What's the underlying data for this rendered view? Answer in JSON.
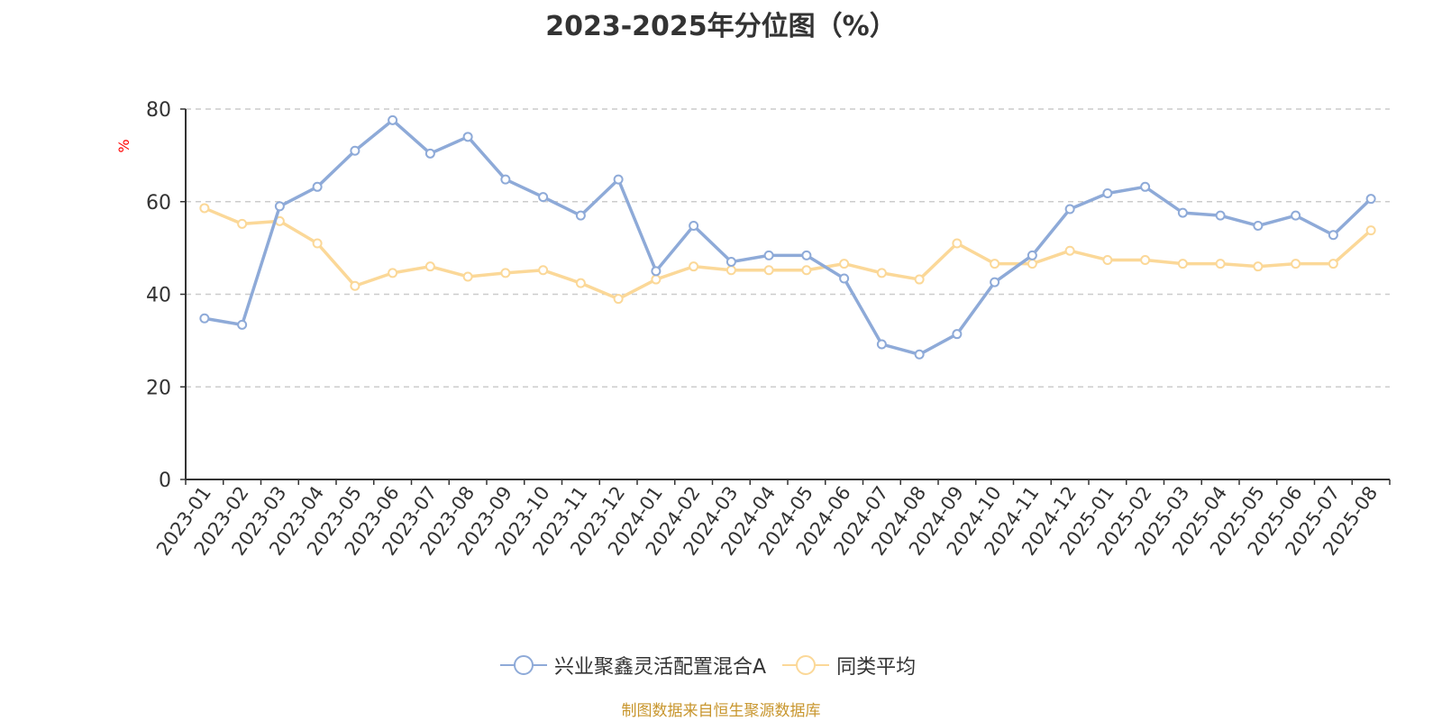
{
  "title": "2023-2025年分位图（%）",
  "source": "制图数据来自恒生聚源数据库",
  "chart_data": {
    "type": "line",
    "title": "2023-2025年分位图（%）",
    "ylabel": "%",
    "ylim": [
      0,
      80
    ],
    "yticks": [
      0,
      20,
      40,
      60,
      80
    ],
    "grid": true,
    "legend_position": "bottom",
    "x": [
      "2023-01",
      "2023-02",
      "2023-03",
      "2023-04",
      "2023-05",
      "2023-06",
      "2023-07",
      "2023-08",
      "2023-09",
      "2023-10",
      "2023-11",
      "2023-12",
      "2024-01",
      "2024-02",
      "2024-03",
      "2024-04",
      "2024-05",
      "2024-06",
      "2024-07",
      "2024-08",
      "2024-09",
      "2024-10",
      "2024-11",
      "2024-12",
      "2025-01",
      "2025-02",
      "2025-03",
      "2025-04",
      "2025-05",
      "2025-06",
      "2025-07",
      "2025-08"
    ],
    "series": [
      {
        "name": "兴业聚鑫灵活配置混合A",
        "color": "#8eaad8",
        "values": [
          34.8,
          33.4,
          59.0,
          63.2,
          71.0,
          77.6,
          70.4,
          74.0,
          64.8,
          61.0,
          57.0,
          64.8,
          45.0,
          54.8,
          47.0,
          48.4,
          48.4,
          43.4,
          29.2,
          27.0,
          31.4,
          42.6,
          48.4,
          58.4,
          61.8,
          63.2,
          57.6,
          57.0,
          54.8,
          57.0,
          52.8,
          60.6
        ]
      },
      {
        "name": "同类平均",
        "color": "#fbd898",
        "values": [
          58.6,
          55.2,
          55.8,
          51.0,
          41.8,
          44.6,
          46.0,
          43.8,
          44.6,
          45.2,
          42.4,
          39.0,
          43.2,
          46.0,
          45.2,
          45.2,
          45.2,
          46.6,
          44.6,
          43.2,
          51.0,
          46.6,
          46.6,
          49.4,
          47.4,
          47.4,
          46.6,
          46.6,
          46.0,
          46.6,
          46.6,
          53.8
        ]
      }
    ]
  }
}
